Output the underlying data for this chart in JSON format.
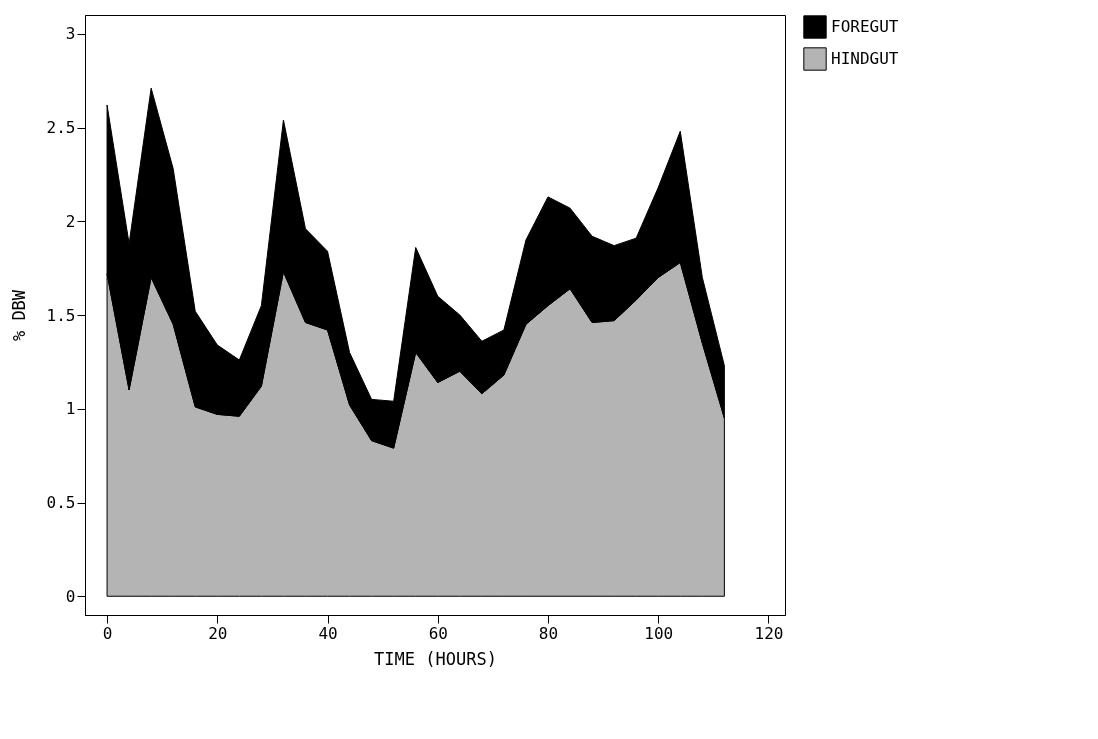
{
  "chart_data": {
    "type": "area",
    "stacked": true,
    "xlabel": "TIME  (HOURS)",
    "ylabel": "% DBW",
    "x": [
      0,
      4,
      8,
      12,
      16,
      20,
      24,
      28,
      32,
      36,
      40,
      44,
      48,
      52,
      56,
      60,
      64,
      68,
      72,
      76,
      80,
      84,
      88,
      92,
      96,
      100,
      104,
      108,
      112
    ],
    "series": [
      {
        "name": "HINDGUT",
        "color": "#b4b4b4",
        "values": [
          1.72,
          1.1,
          1.7,
          1.45,
          1.01,
          0.97,
          0.96,
          1.12,
          1.73,
          1.46,
          1.42,
          1.02,
          0.83,
          0.79,
          1.3,
          1.14,
          1.2,
          1.08,
          1.18,
          1.45,
          1.55,
          1.64,
          1.46,
          1.47,
          1.58,
          1.7,
          1.78,
          1.35,
          0.95
        ]
      },
      {
        "name": "FOREGUT",
        "color": "#000000",
        "values": [
          0.9,
          0.78,
          1.01,
          0.83,
          0.51,
          0.37,
          0.3,
          0.43,
          0.81,
          0.5,
          0.42,
          0.28,
          0.22,
          0.25,
          0.56,
          0.46,
          0.3,
          0.28,
          0.24,
          0.45,
          0.58,
          0.43,
          0.46,
          0.4,
          0.33,
          0.48,
          0.7,
          0.35,
          0.28
        ]
      }
    ],
    "xlim": [
      -4,
      123
    ],
    "xticks": [
      0,
      20,
      40,
      60,
      80,
      100,
      120
    ],
    "ylim": [
      -0.1,
      3.1
    ],
    "yticks": [
      0,
      0.5,
      1,
      1.5,
      2,
      2.5,
      3
    ],
    "grid": false,
    "legend": "right"
  }
}
